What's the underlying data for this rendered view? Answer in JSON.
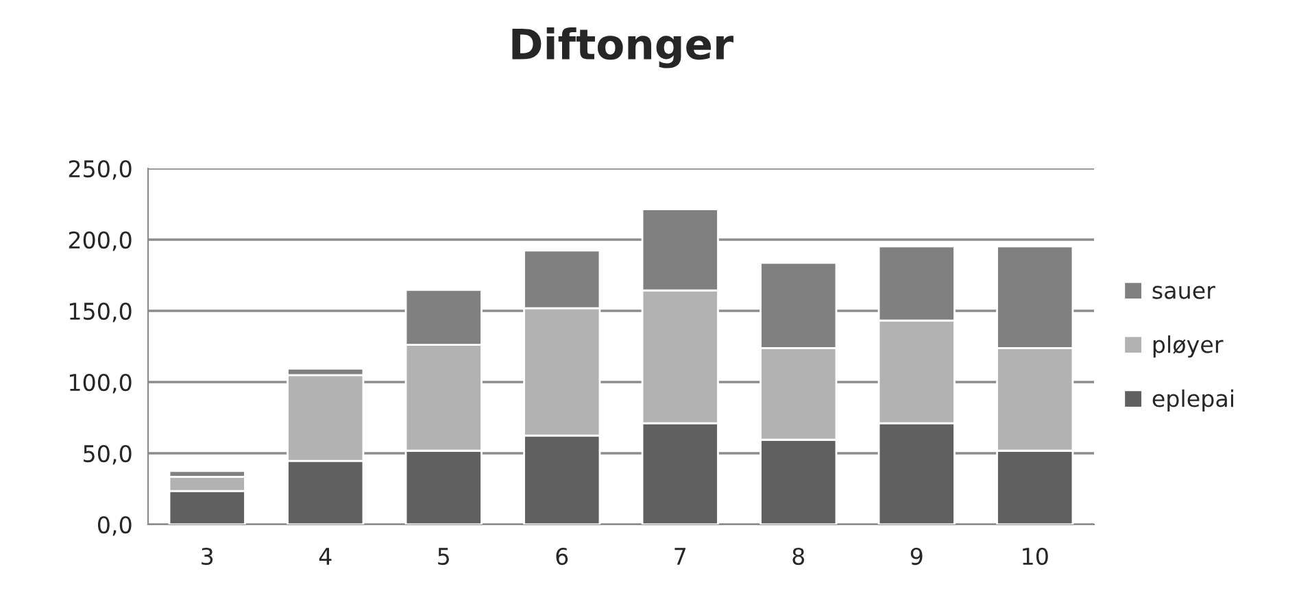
{
  "chart_data": {
    "type": "bar",
    "title": "Diftonger",
    "stacked": true,
    "categories": [
      "3",
      "4",
      "5",
      "6",
      "7",
      "8",
      "9",
      "10"
    ],
    "series": [
      {
        "name": "eplepai",
        "color": "#606060",
        "values": [
          23.5,
          44.7,
          51.8,
          62.4,
          71.1,
          59.5,
          71.1,
          51.8
        ]
      },
      {
        "name": "pløyer",
        "color": "#b2b2b2",
        "values": [
          10.0,
          60.2,
          74.3,
          89.5,
          93.3,
          64.4,
          72.1,
          72.1
        ]
      },
      {
        "name": "sauer",
        "color": "#808080",
        "values": [
          4.1,
          4.5,
          38.6,
          40.5,
          57.0,
          59.8,
          52.1,
          71.4
        ]
      }
    ],
    "ylim": [
      0,
      250
    ],
    "yticks": [
      {
        "value": 0,
        "label": "0,0"
      },
      {
        "value": 50,
        "label": "50,0"
      },
      {
        "value": 100,
        "label": "100,0"
      },
      {
        "value": 150,
        "label": "150,0"
      },
      {
        "value": 200,
        "label": "200,0"
      },
      {
        "value": 250,
        "label": "250,0"
      }
    ],
    "grid": "y",
    "legend": "right"
  }
}
